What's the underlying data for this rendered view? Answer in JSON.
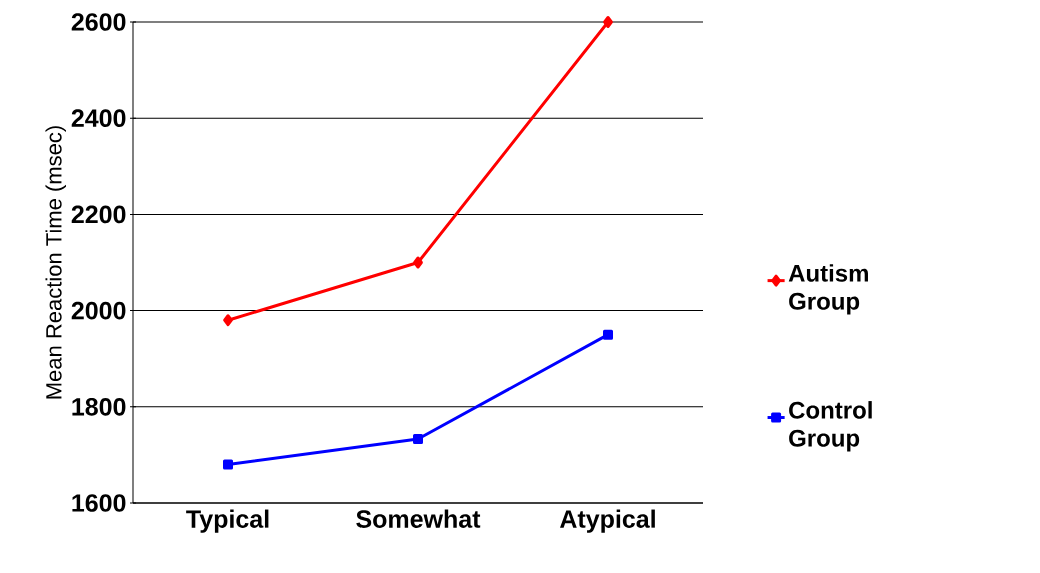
{
  "chart_data": {
    "type": "line",
    "ylabel": "Mean Reaction Time (msec)",
    "categories": [
      "Typical",
      "Somewhat",
      "Atypical"
    ],
    "series": [
      {
        "name": "Autism Group",
        "color": "#ff0000",
        "marker": "diamond",
        "values": [
          1980,
          2100,
          2600
        ]
      },
      {
        "name": "Control Group",
        "color": "#0000ff",
        "marker": "square",
        "values": [
          1680,
          1733,
          1950
        ]
      }
    ],
    "ylim": [
      1600,
      2600
    ],
    "yticks": [
      1600,
      1800,
      2000,
      2200,
      2400,
      2600
    ],
    "grid": "y",
    "legend": "right"
  }
}
